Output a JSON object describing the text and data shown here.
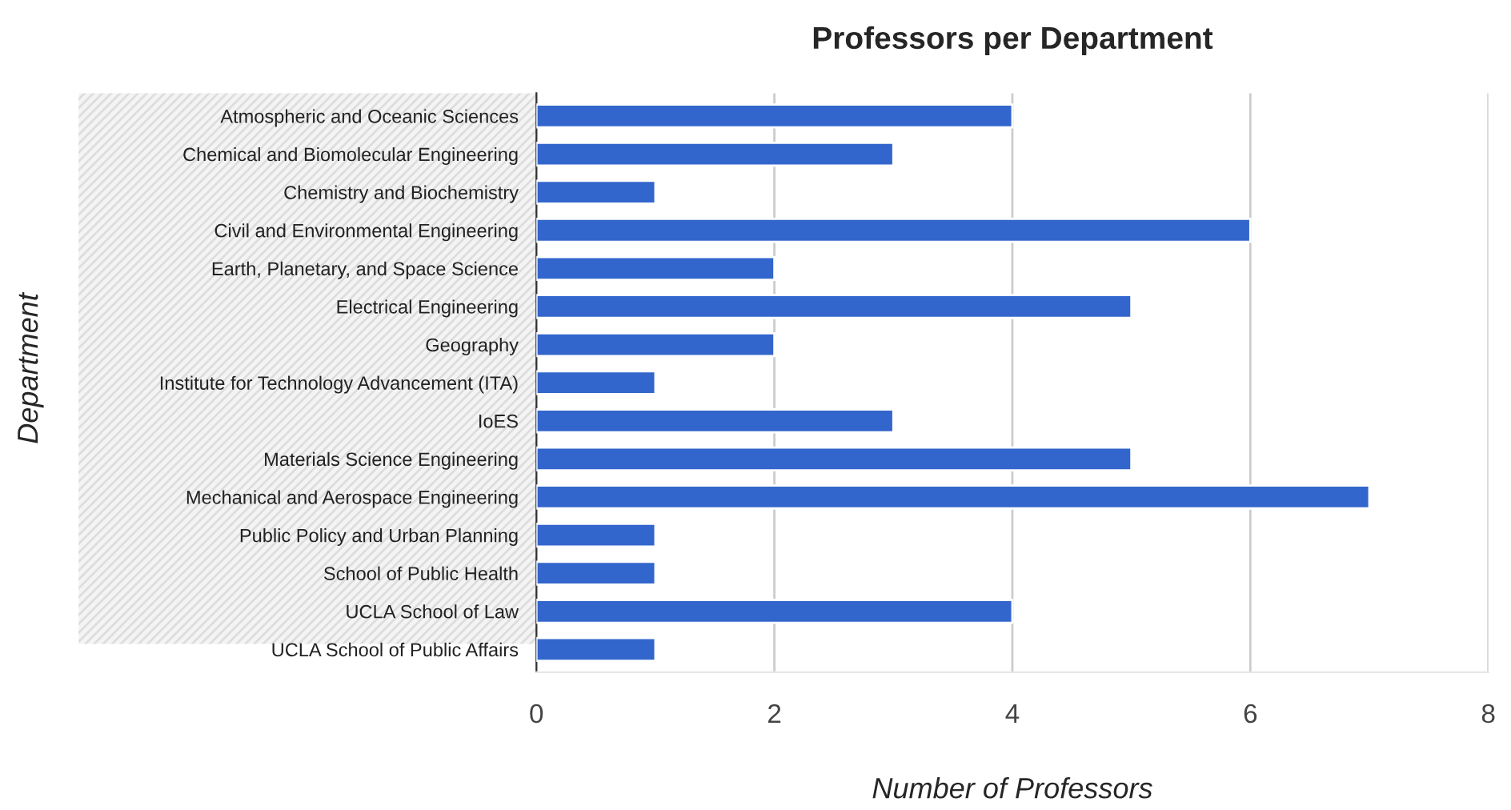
{
  "chart_data": {
    "type": "bar",
    "orientation": "horizontal",
    "title": "Professors per Department",
    "xlabel": "Number of Professors",
    "ylabel": "Department",
    "categories": [
      "Atmospheric and Oceanic Sciences",
      "Chemical and Biomolecular Engineering",
      "Chemistry and Biochemistry",
      "Civil and Environmental Engineering",
      "Earth, Planetary, and Space Science",
      "Electrical Engineering",
      "Geography",
      "Institute for Technology Advancement (ITA)",
      "IoES",
      "Materials Science Engineering",
      "Mechanical and Aerospace Engineering",
      "Public Policy and Urban Planning",
      "School of Public Health",
      "UCLA School of Law",
      "UCLA School of Public Affairs"
    ],
    "values": [
      4,
      3,
      1,
      6,
      2,
      5,
      2,
      1,
      3,
      5,
      7,
      1,
      1,
      4,
      1
    ],
    "color": "#3366cc",
    "xlim": [
      0,
      8
    ],
    "xticks": [
      0,
      2,
      4,
      6,
      8
    ],
    "grid": "x"
  }
}
